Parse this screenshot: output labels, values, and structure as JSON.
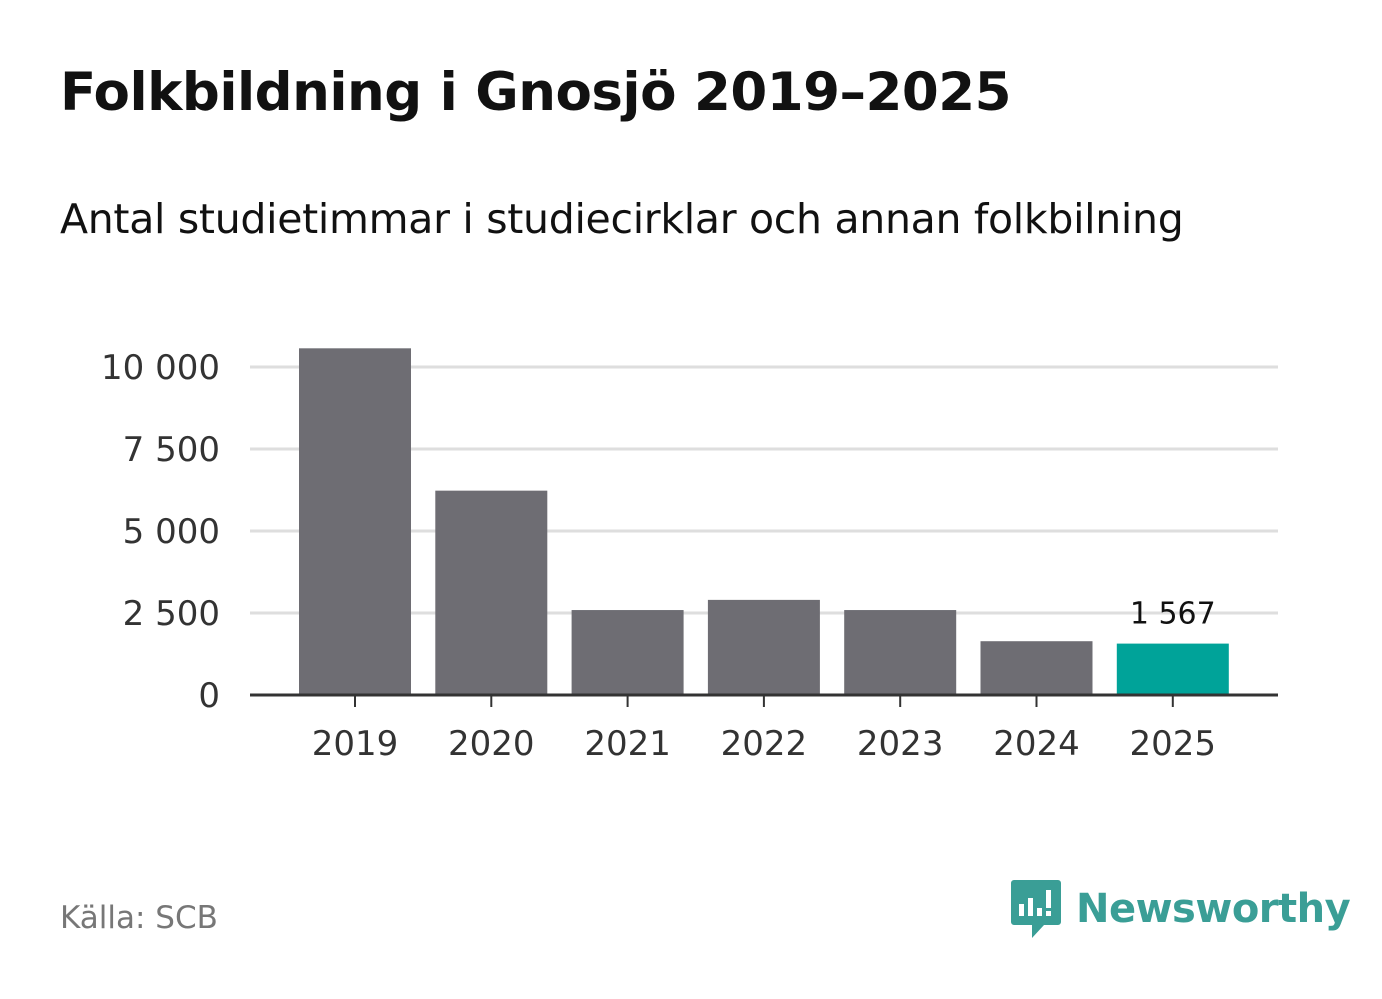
{
  "chart_data": {
    "type": "bar",
    "title": "Folkbildning i Gnosjö 2019–2025",
    "subtitle": "Antal studietimmar i studiecirklar och annan folkbilning",
    "categories": [
      "2019",
      "2020",
      "2021",
      "2022",
      "2023",
      "2024",
      "2025"
    ],
    "values": [
      10570,
      6230,
      2590,
      2900,
      2590,
      1640,
      1567
    ],
    "ylim": [
      0,
      10000
    ],
    "yticks": [
      0,
      2500,
      5000,
      7500,
      10000
    ],
    "ytick_labels": [
      "0",
      "2 500",
      "5 000",
      "7 500",
      "10 000"
    ],
    "highlight_index": 6,
    "highlight_label": "1 567",
    "xlabel": "",
    "ylabel": "",
    "grid": true,
    "colors": {
      "bar": "#6e6d73",
      "highlight": "#00a399",
      "grid": "#dedede",
      "axis": "#333333"
    }
  },
  "footer": {
    "source": "Källa: SCB",
    "brand": "Newsworthy",
    "brand_color": "#3a9e96",
    "brand_icon": "newsworthy-logo-icon"
  }
}
